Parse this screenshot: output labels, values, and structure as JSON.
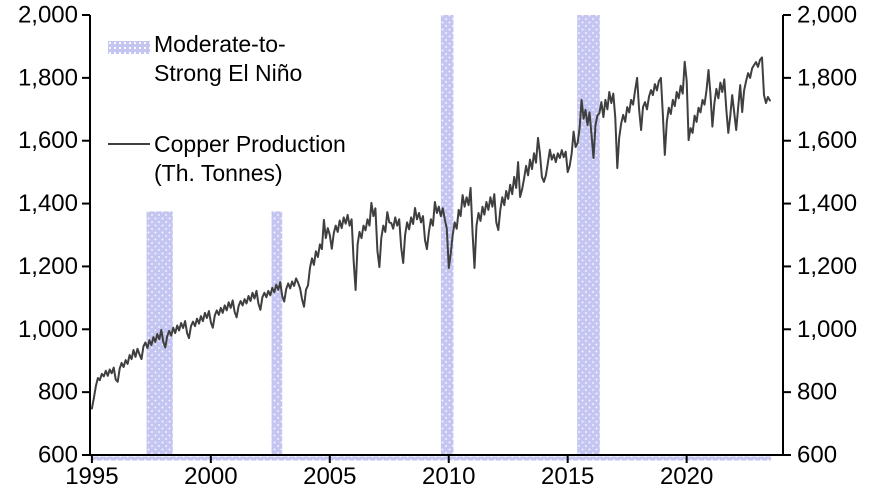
{
  "chart_data": {
    "type": "line",
    "title": "",
    "grid": false,
    "x_axis": {
      "label": "",
      "min": 1994.92,
      "max": 2024.05,
      "ticks": [
        1995,
        2000,
        2005,
        2010,
        2015,
        2020
      ],
      "tick_labels": [
        "1995",
        "2000",
        "2005",
        "2010",
        "2015",
        "2020"
      ]
    },
    "y_axis": {
      "label": "",
      "min": 600,
      "max": 2000,
      "ticks": [
        600,
        800,
        1000,
        1200,
        1400,
        1600,
        1800,
        2000
      ],
      "tick_labels": [
        "600",
        "800",
        "1,000",
        "1,200",
        "1,400",
        "1,600",
        "1,800",
        "2,000"
      ],
      "sides": [
        "left",
        "right"
      ]
    },
    "series": [
      {
        "name": "Copper Production (Th. Tonnes)",
        "type": "line",
        "color": "#3f3f3f",
        "start_year": 1995,
        "frequency": "monthly",
        "values": [
          748,
          782,
          820,
          845,
          838,
          858,
          850,
          868,
          852,
          872,
          860,
          878,
          840,
          833,
          875,
          893,
          880,
          902,
          890,
          918,
          905,
          934,
          912,
          938,
          920,
          905,
          945,
          958,
          940,
          965,
          950,
          975,
          960,
          985,
          968,
          998,
          960,
          942,
          978,
          995,
          980,
          1005,
          988,
          1012,
          996,
          1020,
          1004,
          1026,
          988,
          972,
          1010,
          1024,
          1010,
          1034,
          1018,
          1042,
          1026,
          1052,
          1036,
          1058,
          1022,
          1005,
          1044,
          1060,
          1046,
          1068,
          1052,
          1076,
          1060,
          1086,
          1068,
          1092,
          1056,
          1038,
          1074,
          1090,
          1076,
          1096,
          1082,
          1106,
          1090,
          1116,
          1098,
          1122,
          1082,
          1062,
          1102,
          1116,
          1102,
          1122,
          1108,
          1132,
          1118,
          1142,
          1126,
          1150,
          1106,
          1088,
          1128,
          1146,
          1130,
          1152,
          1138,
          1162,
          1148,
          1130,
          1096,
          1072,
          1126,
          1140,
          1196,
          1226,
          1205,
          1248,
          1230,
          1270,
          1255,
          1348,
          1290,
          1322,
          1300,
          1256,
          1306,
          1330,
          1310,
          1346,
          1322,
          1356,
          1336,
          1364,
          1330,
          1350,
          1220,
          1125,
          1270,
          1310,
          1290,
          1330,
          1315,
          1350,
          1330,
          1402,
          1360,
          1385,
          1250,
          1198,
          1290,
          1330,
          1310,
          1373,
          1340,
          1338,
          1320,
          1356,
          1330,
          1350,
          1260,
          1211,
          1300,
          1340,
          1318,
          1356,
          1335,
          1386,
          1350,
          1370,
          1340,
          1360,
          1284,
          1255,
          1310,
          1350,
          1330,
          1405,
          1370,
          1390,
          1360,
          1385,
          1350,
          1320,
          1195,
          1240,
          1300,
          1340,
          1320,
          1380,
          1360,
          1427,
          1390,
          1420,
          1395,
          1450,
          1310,
          1195,
          1330,
          1370,
          1345,
          1390,
          1365,
          1405,
          1380,
          1420,
          1390,
          1430,
          1340,
          1316,
          1380,
          1420,
          1395,
          1440,
          1415,
          1460,
          1430,
          1485,
          1450,
          1532,
          1421,
          1445,
          1480,
          1520,
          1490,
          1540,
          1510,
          1560,
          1530,
          1609,
          1560,
          1485,
          1469,
          1490,
          1530,
          1571,
          1540,
          1556,
          1532,
          1560,
          1545,
          1570,
          1548,
          1565,
          1500,
          1520,
          1560,
          1629,
          1580,
          1593,
          1640,
          1730,
          1670,
          1698,
          1650,
          1690,
          1620,
          1545,
          1650,
          1680,
          1688,
          1723,
          1675,
          1730,
          1700,
          1755,
          1720,
          1750,
          1672,
          1513,
          1610,
          1655,
          1682,
          1660,
          1707,
          1690,
          1730,
          1715,
          1760,
          1800,
          1700,
          1634,
          1707,
          1723,
          1700,
          1740,
          1761,
          1745,
          1780,
          1760,
          1790,
          1800,
          1680,
          1555,
          1660,
          1705,
          1685,
          1730,
          1710,
          1755,
          1735,
          1775,
          1750,
          1851,
          1790,
          1602,
          1640,
          1625,
          1680,
          1660,
          1705,
          1690,
          1730,
          1715,
          1760,
          1825,
          1750,
          1645,
          1720,
          1765,
          1735,
          1785,
          1755,
          1795,
          1700,
          1625,
          1680,
          1745,
          1690,
          1634,
          1707,
          1777,
          1691,
          1760,
          1790,
          1815,
          1800,
          1830,
          1841,
          1850,
          1835,
          1857,
          1865,
          1745,
          1720,
          1739,
          1728
        ]
      }
    ],
    "el_nino_bands": {
      "name": "Moderate-to-Strong El Niño",
      "color": "#c4c5f1",
      "intervals": [
        {
          "from": 1997.3,
          "to": 1998.4,
          "top": 1375
        },
        {
          "from": 2002.55,
          "to": 2003.0,
          "top": 1375
        },
        {
          "from": 2009.67,
          "to": 2010.2,
          "top": 2000
        },
        {
          "from": 2015.4,
          "to": 2016.35,
          "top": 2000
        }
      ],
      "baseline_strip": {
        "from": 1995.0,
        "to": 2023.55
      }
    },
    "legend": {
      "position": "top-left",
      "items": [
        {
          "swatch": "band",
          "lines": [
            "Moderate-to-",
            "Strong El Niño"
          ]
        },
        {
          "swatch": "line",
          "lines": [
            "Copper Production",
            "(Th. Tonnes)"
          ]
        }
      ]
    }
  },
  "colors": {
    "background": "#ffffff",
    "axis": "#000000",
    "text": "#000000",
    "band": "#c4c5f1",
    "line": "#3f3f3f"
  }
}
